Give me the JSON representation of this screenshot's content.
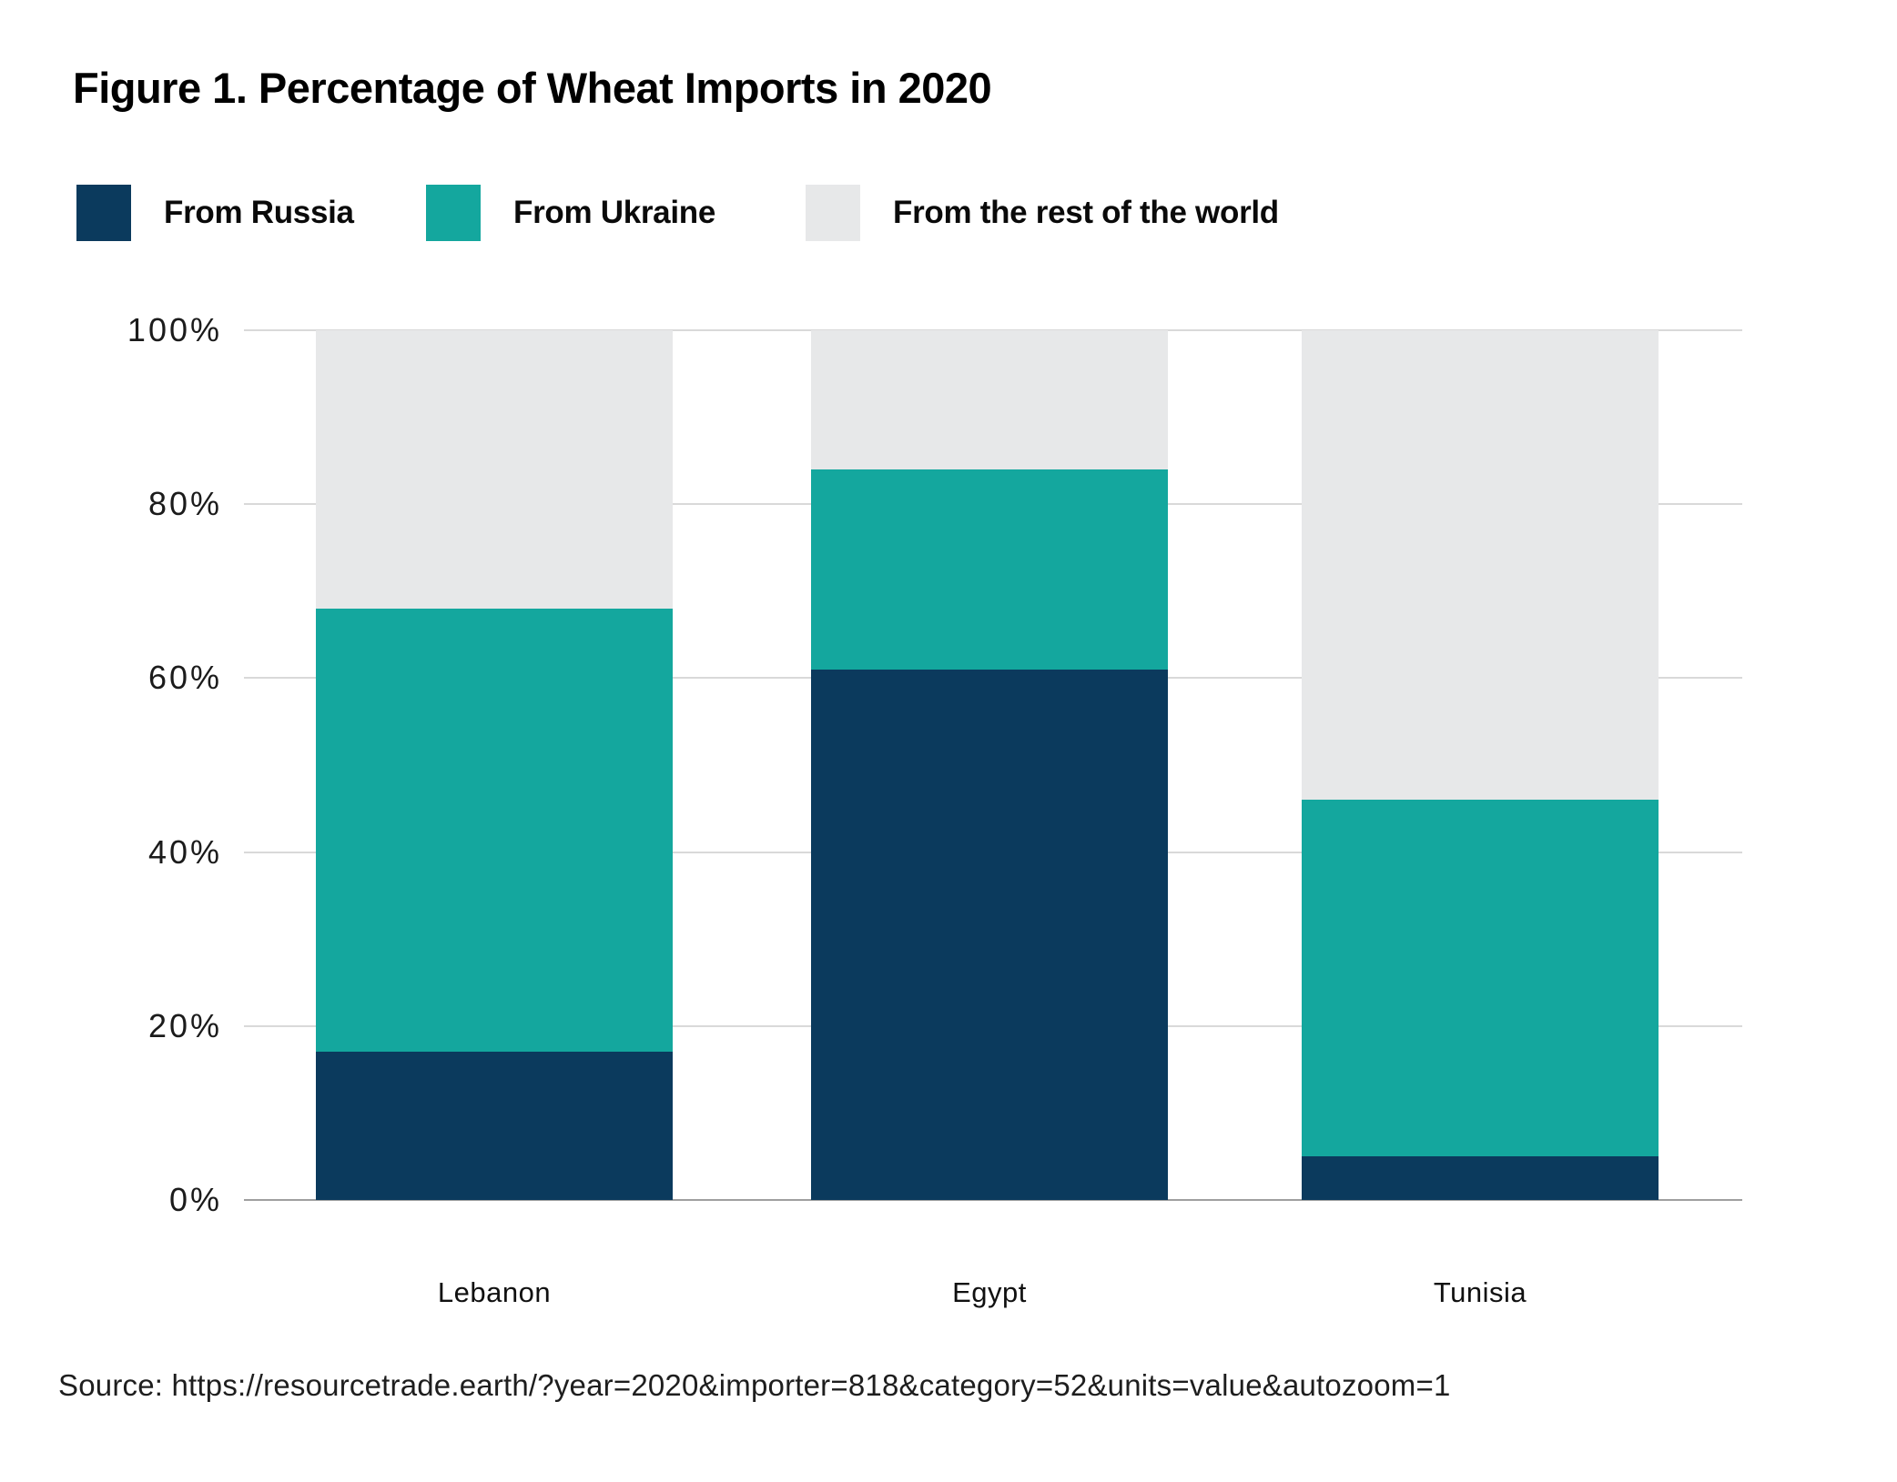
{
  "figure": {
    "title": "Figure 1. Percentage of Wheat Imports in 2020",
    "source": "Source: https://resourcetrade.earth/?year=2020&importer=818&category=52&units=value&autozoom=1"
  },
  "legend": [
    {
      "label": "From Russia",
      "color": "#0b3a5d"
    },
    {
      "label": "From Ukraine",
      "color": "#14a79e"
    },
    {
      "label": "From the rest of the world",
      "color": "#e7e8e9"
    }
  ],
  "chart_data": {
    "type": "bar",
    "stacked": true,
    "title": "Figure 1. Percentage of Wheat Imports in 2020",
    "categories": [
      "Lebanon",
      "Egypt",
      "Tunisia"
    ],
    "series": [
      {
        "name": "From Russia",
        "color": "#0b3a5d",
        "values": [
          17,
          61,
          5
        ]
      },
      {
        "name": "From Ukraine",
        "color": "#14a79e",
        "values": [
          51,
          23,
          41
        ]
      },
      {
        "name": "From the rest of the world",
        "color": "#e7e8e9",
        "values": [
          32,
          16,
          54
        ]
      }
    ],
    "xlabel": "",
    "ylabel": "",
    "ylim": [
      0,
      100
    ],
    "yticks": [
      "0%",
      "20%",
      "40%",
      "60%",
      "80%",
      "100%"
    ],
    "grid": true,
    "gridline_color": "#d9d9d9",
    "axis_line_color": "#9f9f9f",
    "legend_position": "top"
  }
}
